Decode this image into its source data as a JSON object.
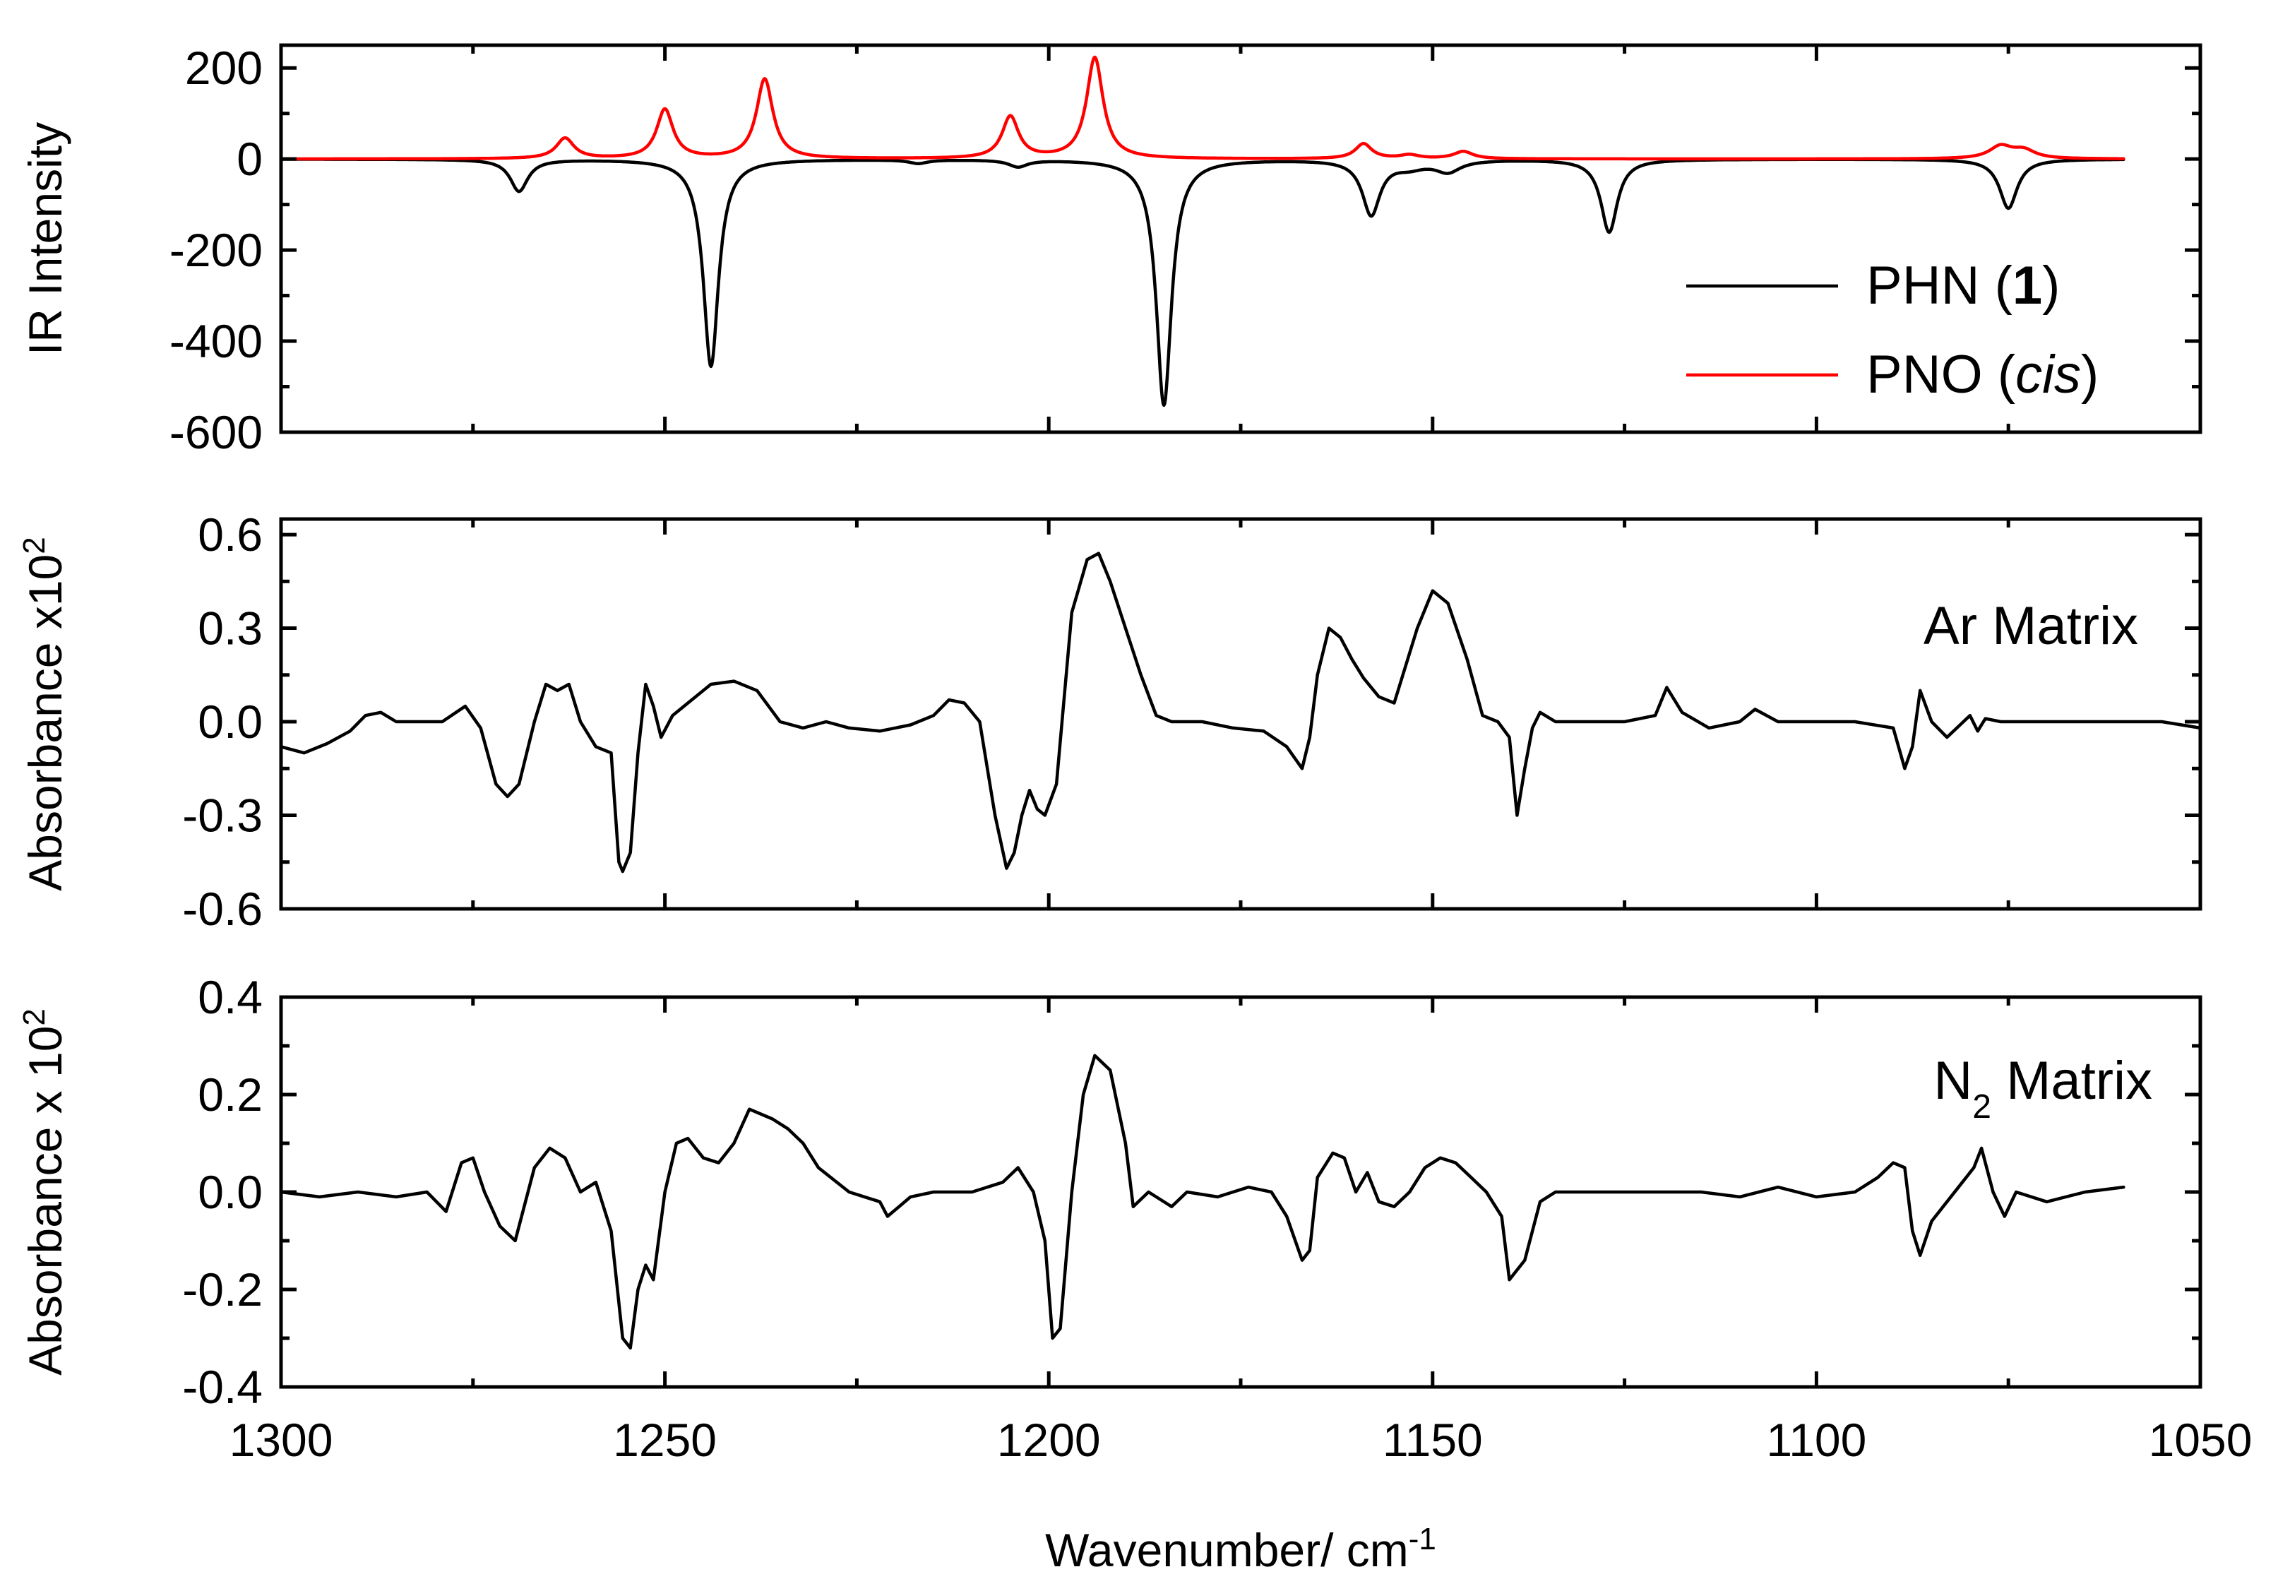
{
  "chart_data": [
    {
      "type": "line",
      "panel": "top",
      "ylabel": "IR Intensity",
      "ylim": [
        -600,
        250
      ],
      "yticks": [
        -600,
        -400,
        -200,
        0,
        200
      ],
      "ytick_labels": [
        "-600",
        "-400",
        "-200",
        "0",
        "200"
      ],
      "xlim": [
        1300,
        1050
      ],
      "series": [
        {
          "name": "PHN (1)",
          "legend_main": "PHN (",
          "legend_bold": "1",
          "legend_close": ")",
          "color": "#000000",
          "direction": -1,
          "baseline": 0,
          "x_range": [
            1300,
            1060
          ],
          "peaks": [
            {
              "x": 1269,
              "y": -70,
              "w": 1.4
            },
            {
              "x": 1244,
              "y": -455,
              "w": 1.2
            },
            {
              "x": 1217,
              "y": -8,
              "w": 1.5
            },
            {
              "x": 1204,
              "y": -15,
              "w": 1.5
            },
            {
              "x": 1185,
              "y": -540,
              "w": 1.2
            },
            {
              "x": 1158,
              "y": -120,
              "w": 1.4
            },
            {
              "x": 1153,
              "y": -15,
              "w": 2.5
            },
            {
              "x": 1148,
              "y": -25,
              "w": 2.0
            },
            {
              "x": 1127,
              "y": -160,
              "w": 1.3
            },
            {
              "x": 1075,
              "y": -108,
              "w": 1.4
            }
          ]
        },
        {
          "name": "PNO (cis)",
          "legend_main": "PNO (",
          "legend_italic": "cis",
          "legend_close": ")",
          "color": "#ff0000",
          "direction": 1,
          "baseline": 0,
          "x_range": [
            1300,
            1060
          ],
          "peaks": [
            {
              "x": 1263,
              "y": 45,
              "w": 1.4
            },
            {
              "x": 1250,
              "y": 108,
              "w": 1.3
            },
            {
              "x": 1237,
              "y": 175,
              "w": 1.3
            },
            {
              "x": 1205,
              "y": 92,
              "w": 1.3
            },
            {
              "x": 1194,
              "y": 222,
              "w": 1.3
            },
            {
              "x": 1159,
              "y": 33,
              "w": 1.3
            },
            {
              "x": 1153,
              "y": 8,
              "w": 1.5
            },
            {
              "x": 1146,
              "y": 16,
              "w": 1.5
            },
            {
              "x": 1076,
              "y": 27,
              "w": 1.8
            },
            {
              "x": 1073,
              "y": 18,
              "w": 1.8
            }
          ]
        }
      ]
    },
    {
      "type": "line",
      "panel": "middle",
      "ylabel": "Absorbance x10",
      "ylabel_sup": "2",
      "label": "Ar Matrix",
      "ylim": [
        -0.6,
        0.65
      ],
      "yticks": [
        -0.6,
        -0.3,
        0.0,
        0.3,
        0.6
      ],
      "ytick_labels": [
        "-0.6",
        "-0.3",
        "0.0",
        "0.3",
        "0.6"
      ],
      "xlim": [
        1300,
        1050
      ],
      "series": [
        {
          "name": "Ar Matrix",
          "color": "#000000",
          "x": [
            1300,
            1297,
            1294,
            1291,
            1289,
            1287,
            1285,
            1282,
            1279,
            1276,
            1274,
            1272,
            1270.5,
            1269,
            1267,
            1265.5,
            1264,
            1262.5,
            1261,
            1259,
            1257,
            1256,
            1255.5,
            1254.5,
            1253.5,
            1252.5,
            1251.5,
            1250.5,
            1249,
            1247,
            1244,
            1241,
            1238,
            1235,
            1232,
            1229,
            1226,
            1222,
            1218,
            1215,
            1213,
            1211,
            1209,
            1207,
            1205.5,
            1204.5,
            1203.5,
            1202.5,
            1201.5,
            1200.5,
            1199,
            1197,
            1195,
            1193.5,
            1192,
            1190,
            1188,
            1186,
            1184,
            1180,
            1176,
            1172,
            1169,
            1167,
            1166,
            1165,
            1163.5,
            1162,
            1160.5,
            1159,
            1157,
            1155,
            1152,
            1150,
            1148,
            1145.5,
            1143.5,
            1141.5,
            1140,
            1139,
            1138,
            1137,
            1136,
            1134,
            1130,
            1125,
            1121,
            1119.5,
            1117.5,
            1114,
            1110,
            1108,
            1105,
            1100,
            1095,
            1090,
            1088.5,
            1087.5,
            1086.5,
            1085,
            1083,
            1080,
            1079,
            1078,
            1076,
            1070,
            1065,
            1060,
            1055,
            1050
          ],
          "y": [
            -0.08,
            -0.1,
            -0.07,
            -0.03,
            0.02,
            0.03,
            0.0,
            0.0,
            0.0,
            0.05,
            -0.02,
            -0.2,
            -0.24,
            -0.2,
            0.0,
            0.12,
            0.1,
            0.12,
            0.0,
            -0.08,
            -0.1,
            -0.45,
            -0.48,
            -0.42,
            -0.1,
            0.12,
            0.05,
            -0.05,
            0.02,
            0.06,
            0.12,
            0.13,
            0.1,
            0.0,
            -0.02,
            0.0,
            -0.02,
            -0.03,
            -0.01,
            0.02,
            0.07,
            0.06,
            0.0,
            -0.3,
            -0.47,
            -0.42,
            -0.3,
            -0.22,
            -0.28,
            -0.3,
            -0.2,
            0.35,
            0.52,
            0.54,
            0.45,
            0.3,
            0.15,
            0.02,
            0.0,
            0.0,
            -0.02,
            -0.03,
            -0.08,
            -0.15,
            -0.05,
            0.15,
            0.3,
            0.27,
            0.2,
            0.14,
            0.08,
            0.06,
            0.3,
            0.42,
            0.38,
            0.2,
            0.02,
            0.0,
            -0.05,
            -0.3,
            -0.15,
            -0.02,
            0.03,
            0.0,
            0.0,
            0.0,
            0.02,
            0.11,
            0.03,
            -0.02,
            0.0,
            0.04,
            0.0,
            0.0,
            0.0,
            -0.02,
            -0.15,
            -0.08,
            0.1,
            0.0,
            -0.05,
            0.02,
            -0.03,
            0.01,
            0.0,
            0.0,
            0.0,
            0.0,
            0.0,
            -0.02
          ]
        }
      ]
    },
    {
      "type": "line",
      "panel": "bottom",
      "ylabel": "Absorbance x 10",
      "ylabel_sup": "2",
      "label_main": "N",
      "label_sub": "2",
      "label_rest": " Matrix",
      "ylim": [
        -0.4,
        0.4
      ],
      "yticks": [
        -0.4,
        -0.2,
        0.0,
        0.2,
        0.4
      ],
      "ytick_labels": [
        "-0.4",
        "-0.2",
        "0.0",
        "0.2",
        "0.4"
      ],
      "xlim": [
        1300,
        1050
      ],
      "series": [
        {
          "name": "N2 Matrix",
          "color": "#000000",
          "x": [
            1300,
            1295,
            1290,
            1285,
            1281,
            1278.5,
            1276.5,
            1275,
            1273.5,
            1271.5,
            1269.5,
            1267,
            1265,
            1263,
            1261,
            1259,
            1257,
            1255.5,
            1254.5,
            1253.5,
            1252.5,
            1251.5,
            1250,
            1248.5,
            1247,
            1245,
            1243,
            1241,
            1239,
            1236,
            1234,
            1232,
            1230,
            1226,
            1222,
            1221,
            1218,
            1215,
            1210,
            1206,
            1204,
            1202,
            1200.5,
            1199.5,
            1198.5,
            1197,
            1195.5,
            1194,
            1192,
            1190,
            1189,
            1187,
            1184,
            1182,
            1178,
            1174,
            1171,
            1169,
            1167,
            1166,
            1165,
            1163,
            1161.5,
            1160,
            1158.5,
            1157,
            1155,
            1153,
            1151,
            1149,
            1147,
            1145,
            1143,
            1141,
            1140,
            1138,
            1136,
            1134,
            1130,
            1125,
            1120,
            1115,
            1110,
            1105,
            1100,
            1095,
            1092,
            1090,
            1088.5,
            1087.5,
            1086.5,
            1085,
            1083,
            1081,
            1079.5,
            1078.5,
            1077,
            1075.5,
            1074,
            1070,
            1065,
            1060
          ],
          "y": [
            0.0,
            -0.01,
            0.0,
            -0.01,
            0.0,
            -0.04,
            0.06,
            0.07,
            0.0,
            -0.07,
            -0.1,
            0.05,
            0.09,
            0.07,
            0.0,
            0.02,
            -0.08,
            -0.3,
            -0.32,
            -0.2,
            -0.15,
            -0.18,
            0.0,
            0.1,
            0.11,
            0.07,
            0.06,
            0.1,
            0.17,
            0.15,
            0.13,
            0.1,
            0.05,
            0.0,
            -0.02,
            -0.05,
            -0.01,
            0.0,
            0.0,
            0.02,
            0.05,
            0.0,
            -0.1,
            -0.3,
            -0.28,
            0.0,
            0.2,
            0.28,
            0.25,
            0.1,
            -0.03,
            0.0,
            -0.03,
            0.0,
            -0.01,
            0.01,
            0.0,
            -0.05,
            -0.14,
            -0.12,
            0.03,
            0.08,
            0.07,
            0.0,
            0.04,
            -0.02,
            -0.03,
            0.0,
            0.05,
            0.07,
            0.06,
            0.03,
            0.0,
            -0.05,
            -0.18,
            -0.14,
            -0.02,
            0.0,
            0.0,
            0.0,
            0.0,
            0.0,
            -0.01,
            0.01,
            -0.01,
            0.0,
            0.03,
            0.06,
            0.05,
            -0.08,
            -0.13,
            -0.06,
            -0.02,
            0.02,
            0.05,
            0.09,
            0.0,
            -0.05,
            0.0,
            -0.02,
            0.0,
            0.01
          ]
        }
      ]
    }
  ],
  "xaxis": {
    "xlabel": "Wavenumber/ cm",
    "xlabel_sup": "-1",
    "xlim": [
      1300,
      1050
    ],
    "xticks": [
      1300,
      1250,
      1200,
      1150,
      1100,
      1050
    ],
    "xtick_labels": [
      "1300",
      "1250",
      "1200",
      "1150",
      "1100",
      "1050"
    ]
  }
}
